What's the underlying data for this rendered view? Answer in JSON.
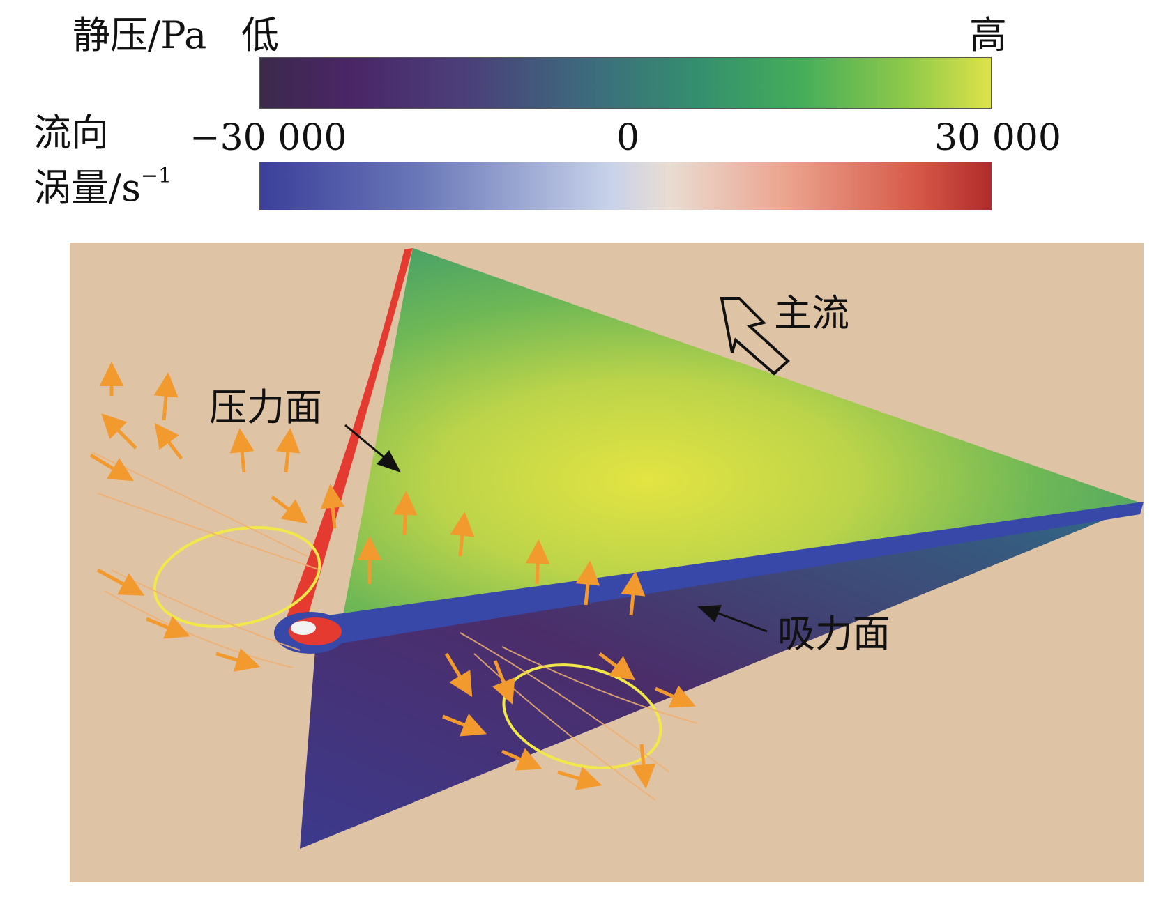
{
  "legend": {
    "pressure_title": "静压/Pa",
    "pressure_low": "低",
    "pressure_high": "高",
    "vorticity_title_line1": "流向",
    "vorticity_title_line2": "涡量/s",
    "vorticity_unit_exponent": "−1",
    "ticks": [
      "−30 000",
      "0",
      "30 000"
    ]
  },
  "annotations": {
    "main_flow": "主流",
    "pressure_side": "压力面",
    "suction_side": "吸力面"
  },
  "colors": {
    "background": "#dfc3a5",
    "leading_edge": "#e53a30",
    "trailing_edge": "#3848a8",
    "vector_arrow": "#f29a2e",
    "vortex_loop": "#f2e84a"
  }
}
